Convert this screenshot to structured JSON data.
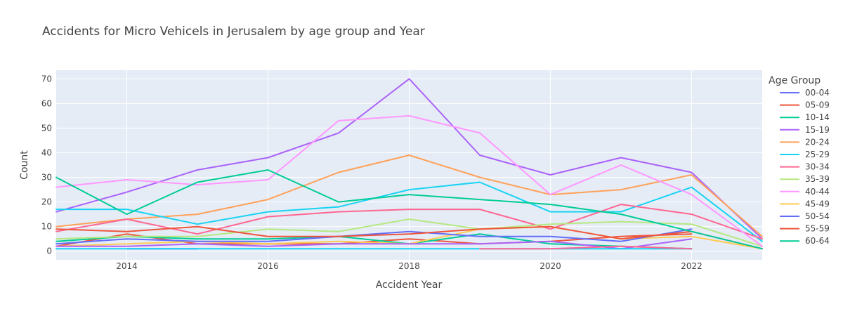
{
  "chart_data": {
    "type": "line",
    "title": "Accidents for Micro Vehicels in Jerusalem by age group and Year",
    "xlabel": "Accident Year",
    "ylabel": "Count",
    "xlim": [
      2013,
      2023
    ],
    "ylim": [
      -3.5,
      73.5
    ],
    "xticks": [
      2014,
      2016,
      2018,
      2020,
      2022
    ],
    "yticks": [
      0,
      10,
      20,
      30,
      40,
      50,
      60,
      70
    ],
    "grid": true,
    "legend_title": "Age Group",
    "legend_position": "right",
    "series": [
      {
        "name": "00-04",
        "color": "#636efa",
        "points": [
          [
            2014,
            1
          ],
          [
            2015,
            1
          ]
        ]
      },
      {
        "name": "05-09",
        "color": "#EF553B",
        "points": [
          [
            2013,
            2
          ],
          [
            2014,
            7
          ],
          [
            2015,
            3
          ],
          [
            2016,
            3
          ],
          [
            2017,
            3
          ],
          [
            2018,
            5
          ],
          [
            2019,
            3
          ],
          [
            2020,
            4
          ],
          [
            2021,
            6
          ],
          [
            2022,
            7
          ]
        ]
      },
      {
        "name": "10-14",
        "color": "#00cc96",
        "points": [
          [
            2013,
            4
          ],
          [
            2014,
            6
          ],
          [
            2015,
            5
          ],
          [
            2016,
            5
          ],
          [
            2017,
            6
          ],
          [
            2018,
            3
          ],
          [
            2019,
            7
          ],
          [
            2020,
            3
          ],
          [
            2021,
            2
          ],
          [
            2022,
            1
          ]
        ]
      },
      {
        "name": "15-19",
        "color": "#ab63fa",
        "points": [
          [
            2013,
            16
          ],
          [
            2014,
            24
          ],
          [
            2015,
            33
          ],
          [
            2016,
            38
          ],
          [
            2017,
            48
          ],
          [
            2018,
            70
          ],
          [
            2019,
            39
          ],
          [
            2020,
            31
          ],
          [
            2021,
            38
          ],
          [
            2022,
            32
          ],
          [
            2023,
            5
          ]
        ]
      },
      {
        "name": "20-24",
        "color": "#FFA15A",
        "points": [
          [
            2013,
            10
          ],
          [
            2014,
            13
          ],
          [
            2015,
            15
          ],
          [
            2016,
            21
          ],
          [
            2017,
            32
          ],
          [
            2018,
            39
          ],
          [
            2019,
            30
          ],
          [
            2020,
            23
          ],
          [
            2021,
            25
          ],
          [
            2022,
            31
          ],
          [
            2023,
            6
          ]
        ]
      },
      {
        "name": "25-29",
        "color": "#19d3f3",
        "points": [
          [
            2013,
            17
          ],
          [
            2014,
            17
          ],
          [
            2015,
            11
          ],
          [
            2016,
            16
          ],
          [
            2017,
            18
          ],
          [
            2018,
            25
          ],
          [
            2019,
            28
          ],
          [
            2020,
            16
          ],
          [
            2021,
            16
          ],
          [
            2022,
            26
          ],
          [
            2023,
            4
          ]
        ]
      },
      {
        "name": "30-34",
        "color": "#FF6692",
        "points": [
          [
            2013,
            8
          ],
          [
            2014,
            13
          ],
          [
            2015,
            7
          ],
          [
            2016,
            14
          ],
          [
            2017,
            16
          ],
          [
            2018,
            17
          ],
          [
            2019,
            17
          ],
          [
            2020,
            9
          ],
          [
            2021,
            19
          ],
          [
            2022,
            15
          ],
          [
            2023,
            5
          ]
        ]
      },
      {
        "name": "35-39",
        "color": "#B6E880",
        "points": [
          [
            2013,
            5
          ],
          [
            2014,
            6
          ],
          [
            2015,
            6
          ],
          [
            2016,
            9
          ],
          [
            2017,
            8
          ],
          [
            2018,
            13
          ],
          [
            2019,
            9
          ],
          [
            2020,
            11
          ],
          [
            2021,
            12
          ],
          [
            2022,
            11
          ],
          [
            2023,
            2
          ]
        ]
      },
      {
        "name": "40-44",
        "color": "#FF97FF",
        "points": [
          [
            2013,
            26
          ],
          [
            2014,
            29
          ],
          [
            2015,
            27
          ],
          [
            2016,
            29
          ],
          [
            2017,
            53
          ],
          [
            2018,
            55
          ],
          [
            2019,
            48
          ],
          [
            2020,
            23
          ],
          [
            2021,
            35
          ],
          [
            2022,
            23
          ],
          [
            2023,
            2
          ]
        ]
      },
      {
        "name": "45-49",
        "color": "#FECB52",
        "points": [
          [
            2013,
            2
          ],
          [
            2014,
            3
          ],
          [
            2015,
            4
          ],
          [
            2016,
            3
          ],
          [
            2017,
            4
          ],
          [
            2018,
            3
          ],
          [
            2019,
            9
          ],
          [
            2020,
            10
          ],
          [
            2021,
            5
          ],
          [
            2022,
            6
          ],
          [
            2023,
            1
          ]
        ]
      },
      {
        "name": "50-54",
        "color": "#636efa",
        "points": [
          [
            2013,
            3
          ],
          [
            2014,
            5
          ],
          [
            2015,
            4
          ],
          [
            2016,
            4
          ],
          [
            2017,
            6
          ],
          [
            2018,
            8
          ],
          [
            2019,
            6
          ],
          [
            2020,
            6
          ],
          [
            2021,
            4
          ],
          [
            2022,
            9
          ]
        ]
      },
      {
        "name": "55-59",
        "color": "#EF553B",
        "points": [
          [
            2013,
            9
          ],
          [
            2014,
            8
          ],
          [
            2015,
            10
          ],
          [
            2016,
            6
          ],
          [
            2017,
            6
          ],
          [
            2018,
            7
          ],
          [
            2019,
            9
          ],
          [
            2020,
            10
          ],
          [
            2021,
            5
          ],
          [
            2022,
            8
          ],
          [
            2023,
            1
          ]
        ]
      },
      {
        "name": "60-64",
        "color": "#00cc96",
        "points": [
          [
            2013,
            30
          ],
          [
            2014,
            15
          ],
          [
            2015,
            28
          ],
          [
            2016,
            33
          ],
          [
            2017,
            20
          ],
          [
            2018,
            23
          ],
          [
            2019,
            21
          ],
          [
            2020,
            19
          ],
          [
            2021,
            15
          ],
          [
            2022,
            8
          ],
          [
            2023,
            1
          ]
        ]
      },
      {
        "name": "",
        "color": "#ab63fa",
        "points": [
          [
            2013,
            2
          ],
          [
            2014,
            2
          ],
          [
            2015,
            3
          ],
          [
            2016,
            2
          ],
          [
            2017,
            3
          ],
          [
            2018,
            3
          ],
          [
            2019,
            3
          ],
          [
            2020,
            4
          ],
          [
            2021,
            1
          ],
          [
            2022,
            5
          ]
        ]
      },
      {
        "name": "",
        "color": "#19d3f3",
        "points": [
          [
            2013,
            1
          ],
          [
            2014,
            1
          ],
          [
            2015,
            1
          ],
          [
            2016,
            1
          ],
          [
            2017,
            1
          ],
          [
            2018,
            1
          ],
          [
            2019,
            1
          ],
          [
            2020,
            1
          ],
          [
            2021,
            1
          ],
          [
            2022,
            1
          ]
        ]
      },
      {
        "name": "",
        "color": "#FF6692",
        "points": [
          [
            2019,
            1
          ],
          [
            2020,
            1
          ],
          [
            2021,
            2
          ],
          [
            2022,
            1
          ]
        ]
      }
    ]
  }
}
